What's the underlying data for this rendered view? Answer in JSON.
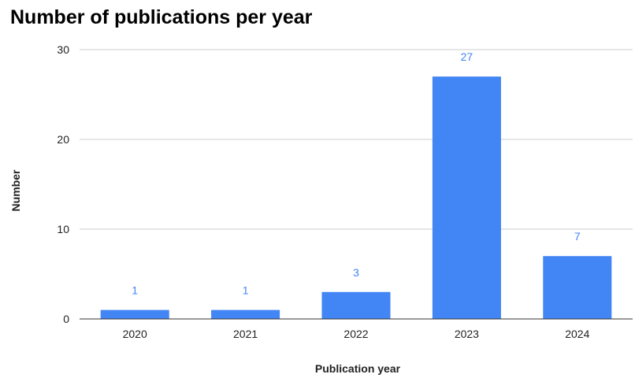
{
  "chart_data": {
    "type": "bar",
    "title": "Number of publications per year",
    "xlabel": "Publication year",
    "ylabel": "Number",
    "categories": [
      "2020",
      "2021",
      "2022",
      "2023",
      "2024"
    ],
    "values": [
      1,
      1,
      3,
      27,
      7
    ],
    "ylim": [
      0,
      30
    ],
    "yticks": [
      0,
      10,
      20,
      30
    ],
    "grid": true,
    "legend": "none",
    "data_labels": true,
    "colors": {
      "bar": "#4285f4",
      "data_label": "#4285f4"
    }
  }
}
